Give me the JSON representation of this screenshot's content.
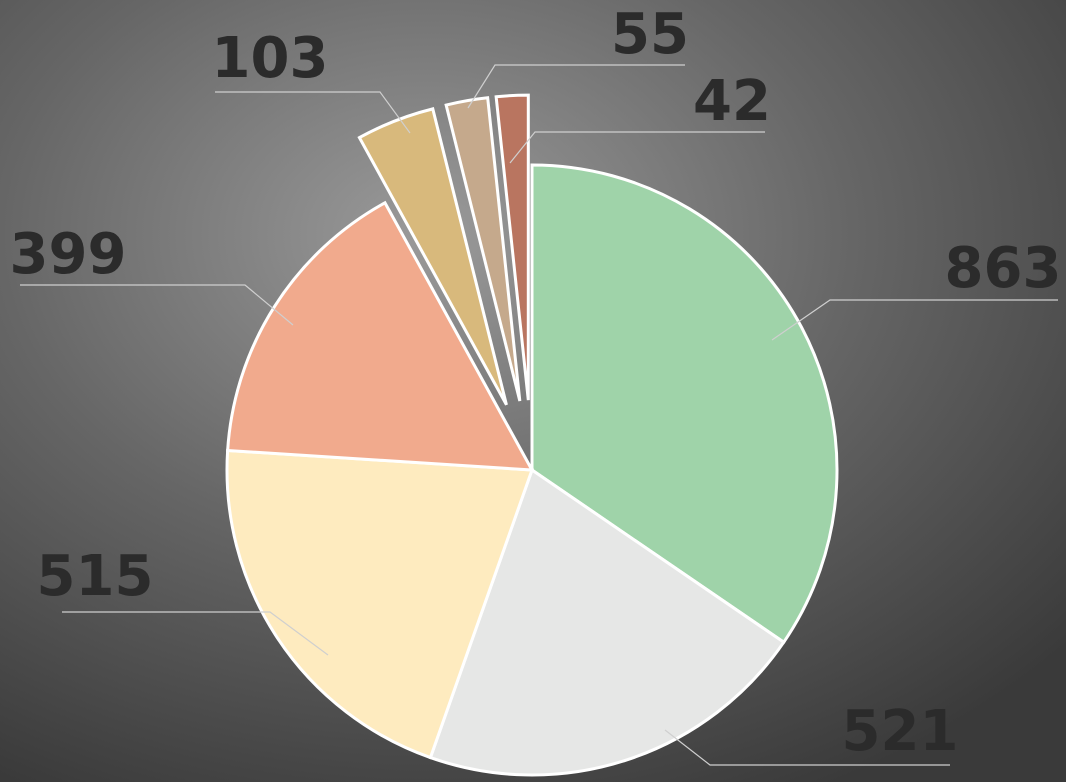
{
  "chart_data": {
    "type": "pie",
    "values": [
      863,
      521,
      515,
      399,
      103,
      55,
      42
    ],
    "colors": [
      "#9fd3a9",
      "#e6e7e6",
      "#feebbf",
      "#f1aa8d",
      "#d8b97c",
      "#c5a98c",
      "#b97560"
    ]
  }
}
